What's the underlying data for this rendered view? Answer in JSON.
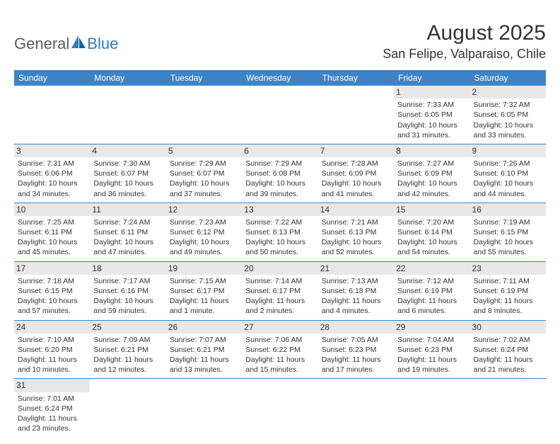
{
  "logo": {
    "general": "General",
    "blue": "Blue"
  },
  "header": {
    "month_title": "August 2025",
    "location": "San Felipe, Valparaiso, Chile"
  },
  "colors": {
    "header_bg": "#3d84c6",
    "header_text": "#ffffff",
    "cell_border": "#3d84c6",
    "daynum_bg": "#e8e8e8",
    "text": "#333333",
    "logo_blue": "#2f7bbf",
    "logo_gray": "#5a5a5a"
  },
  "day_headers": [
    "Sunday",
    "Monday",
    "Tuesday",
    "Wednesday",
    "Thursday",
    "Friday",
    "Saturday"
  ],
  "weeks": [
    [
      {
        "blank": true
      },
      {
        "blank": true
      },
      {
        "blank": true
      },
      {
        "blank": true
      },
      {
        "blank": true
      },
      {
        "day": "1",
        "sunrise": "Sunrise: 7:33 AM",
        "sunset": "Sunset: 6:05 PM",
        "daylight1": "Daylight: 10 hours",
        "daylight2": "and 31 minutes."
      },
      {
        "day": "2",
        "sunrise": "Sunrise: 7:32 AM",
        "sunset": "Sunset: 6:05 PM",
        "daylight1": "Daylight: 10 hours",
        "daylight2": "and 33 minutes."
      }
    ],
    [
      {
        "day": "3",
        "sunrise": "Sunrise: 7:31 AM",
        "sunset": "Sunset: 6:06 PM",
        "daylight1": "Daylight: 10 hours",
        "daylight2": "and 34 minutes."
      },
      {
        "day": "4",
        "sunrise": "Sunrise: 7:30 AM",
        "sunset": "Sunset: 6:07 PM",
        "daylight1": "Daylight: 10 hours",
        "daylight2": "and 36 minutes."
      },
      {
        "day": "5",
        "sunrise": "Sunrise: 7:29 AM",
        "sunset": "Sunset: 6:07 PM",
        "daylight1": "Daylight: 10 hours",
        "daylight2": "and 37 minutes."
      },
      {
        "day": "6",
        "sunrise": "Sunrise: 7:29 AM",
        "sunset": "Sunset: 6:08 PM",
        "daylight1": "Daylight: 10 hours",
        "daylight2": "and 39 minutes."
      },
      {
        "day": "7",
        "sunrise": "Sunrise: 7:28 AM",
        "sunset": "Sunset: 6:09 PM",
        "daylight1": "Daylight: 10 hours",
        "daylight2": "and 41 minutes."
      },
      {
        "day": "8",
        "sunrise": "Sunrise: 7:27 AM",
        "sunset": "Sunset: 6:09 PM",
        "daylight1": "Daylight: 10 hours",
        "daylight2": "and 42 minutes."
      },
      {
        "day": "9",
        "sunrise": "Sunrise: 7:26 AM",
        "sunset": "Sunset: 6:10 PM",
        "daylight1": "Daylight: 10 hours",
        "daylight2": "and 44 minutes."
      }
    ],
    [
      {
        "day": "10",
        "sunrise": "Sunrise: 7:25 AM",
        "sunset": "Sunset: 6:11 PM",
        "daylight1": "Daylight: 10 hours",
        "daylight2": "and 45 minutes."
      },
      {
        "day": "11",
        "sunrise": "Sunrise: 7:24 AM",
        "sunset": "Sunset: 6:11 PM",
        "daylight1": "Daylight: 10 hours",
        "daylight2": "and 47 minutes."
      },
      {
        "day": "12",
        "sunrise": "Sunrise: 7:23 AM",
        "sunset": "Sunset: 6:12 PM",
        "daylight1": "Daylight: 10 hours",
        "daylight2": "and 49 minutes."
      },
      {
        "day": "13",
        "sunrise": "Sunrise: 7:22 AM",
        "sunset": "Sunset: 6:13 PM",
        "daylight1": "Daylight: 10 hours",
        "daylight2": "and 50 minutes."
      },
      {
        "day": "14",
        "sunrise": "Sunrise: 7:21 AM",
        "sunset": "Sunset: 6:13 PM",
        "daylight1": "Daylight: 10 hours",
        "daylight2": "and 52 minutes."
      },
      {
        "day": "15",
        "sunrise": "Sunrise: 7:20 AM",
        "sunset": "Sunset: 6:14 PM",
        "daylight1": "Daylight: 10 hours",
        "daylight2": "and 54 minutes."
      },
      {
        "day": "16",
        "sunrise": "Sunrise: 7:19 AM",
        "sunset": "Sunset: 6:15 PM",
        "daylight1": "Daylight: 10 hours",
        "daylight2": "and 55 minutes."
      }
    ],
    [
      {
        "day": "17",
        "sunrise": "Sunrise: 7:18 AM",
        "sunset": "Sunset: 6:15 PM",
        "daylight1": "Daylight: 10 hours",
        "daylight2": "and 57 minutes."
      },
      {
        "day": "18",
        "sunrise": "Sunrise: 7:17 AM",
        "sunset": "Sunset: 6:16 PM",
        "daylight1": "Daylight: 10 hours",
        "daylight2": "and 59 minutes."
      },
      {
        "day": "19",
        "sunrise": "Sunrise: 7:15 AM",
        "sunset": "Sunset: 6:17 PM",
        "daylight1": "Daylight: 11 hours",
        "daylight2": "and 1 minute."
      },
      {
        "day": "20",
        "sunrise": "Sunrise: 7:14 AM",
        "sunset": "Sunset: 6:17 PM",
        "daylight1": "Daylight: 11 hours",
        "daylight2": "and 2 minutes."
      },
      {
        "day": "21",
        "sunrise": "Sunrise: 7:13 AM",
        "sunset": "Sunset: 6:18 PM",
        "daylight1": "Daylight: 11 hours",
        "daylight2": "and 4 minutes."
      },
      {
        "day": "22",
        "sunrise": "Sunrise: 7:12 AM",
        "sunset": "Sunset: 6:19 PM",
        "daylight1": "Daylight: 11 hours",
        "daylight2": "and 6 minutes."
      },
      {
        "day": "23",
        "sunrise": "Sunrise: 7:11 AM",
        "sunset": "Sunset: 6:19 PM",
        "daylight1": "Daylight: 11 hours",
        "daylight2": "and 8 minutes."
      }
    ],
    [
      {
        "day": "24",
        "sunrise": "Sunrise: 7:10 AM",
        "sunset": "Sunset: 6:20 PM",
        "daylight1": "Daylight: 11 hours",
        "daylight2": "and 10 minutes."
      },
      {
        "day": "25",
        "sunrise": "Sunrise: 7:09 AM",
        "sunset": "Sunset: 6:21 PM",
        "daylight1": "Daylight: 11 hours",
        "daylight2": "and 12 minutes."
      },
      {
        "day": "26",
        "sunrise": "Sunrise: 7:07 AM",
        "sunset": "Sunset: 6:21 PM",
        "daylight1": "Daylight: 11 hours",
        "daylight2": "and 13 minutes."
      },
      {
        "day": "27",
        "sunrise": "Sunrise: 7:06 AM",
        "sunset": "Sunset: 6:22 PM",
        "daylight1": "Daylight: 11 hours",
        "daylight2": "and 15 minutes."
      },
      {
        "day": "28",
        "sunrise": "Sunrise: 7:05 AM",
        "sunset": "Sunset: 6:23 PM",
        "daylight1": "Daylight: 11 hours",
        "daylight2": "and 17 minutes."
      },
      {
        "day": "29",
        "sunrise": "Sunrise: 7:04 AM",
        "sunset": "Sunset: 6:23 PM",
        "daylight1": "Daylight: 11 hours",
        "daylight2": "and 19 minutes."
      },
      {
        "day": "30",
        "sunrise": "Sunrise: 7:02 AM",
        "sunset": "Sunset: 6:24 PM",
        "daylight1": "Daylight: 11 hours",
        "daylight2": "and 21 minutes."
      }
    ],
    [
      {
        "day": "31",
        "sunrise": "Sunrise: 7:01 AM",
        "sunset": "Sunset: 6:24 PM",
        "daylight1": "Daylight: 11 hours",
        "daylight2": "and 23 minutes."
      },
      {
        "blank": true
      },
      {
        "blank": true
      },
      {
        "blank": true
      },
      {
        "blank": true
      },
      {
        "blank": true
      },
      {
        "blank": true
      }
    ]
  ]
}
